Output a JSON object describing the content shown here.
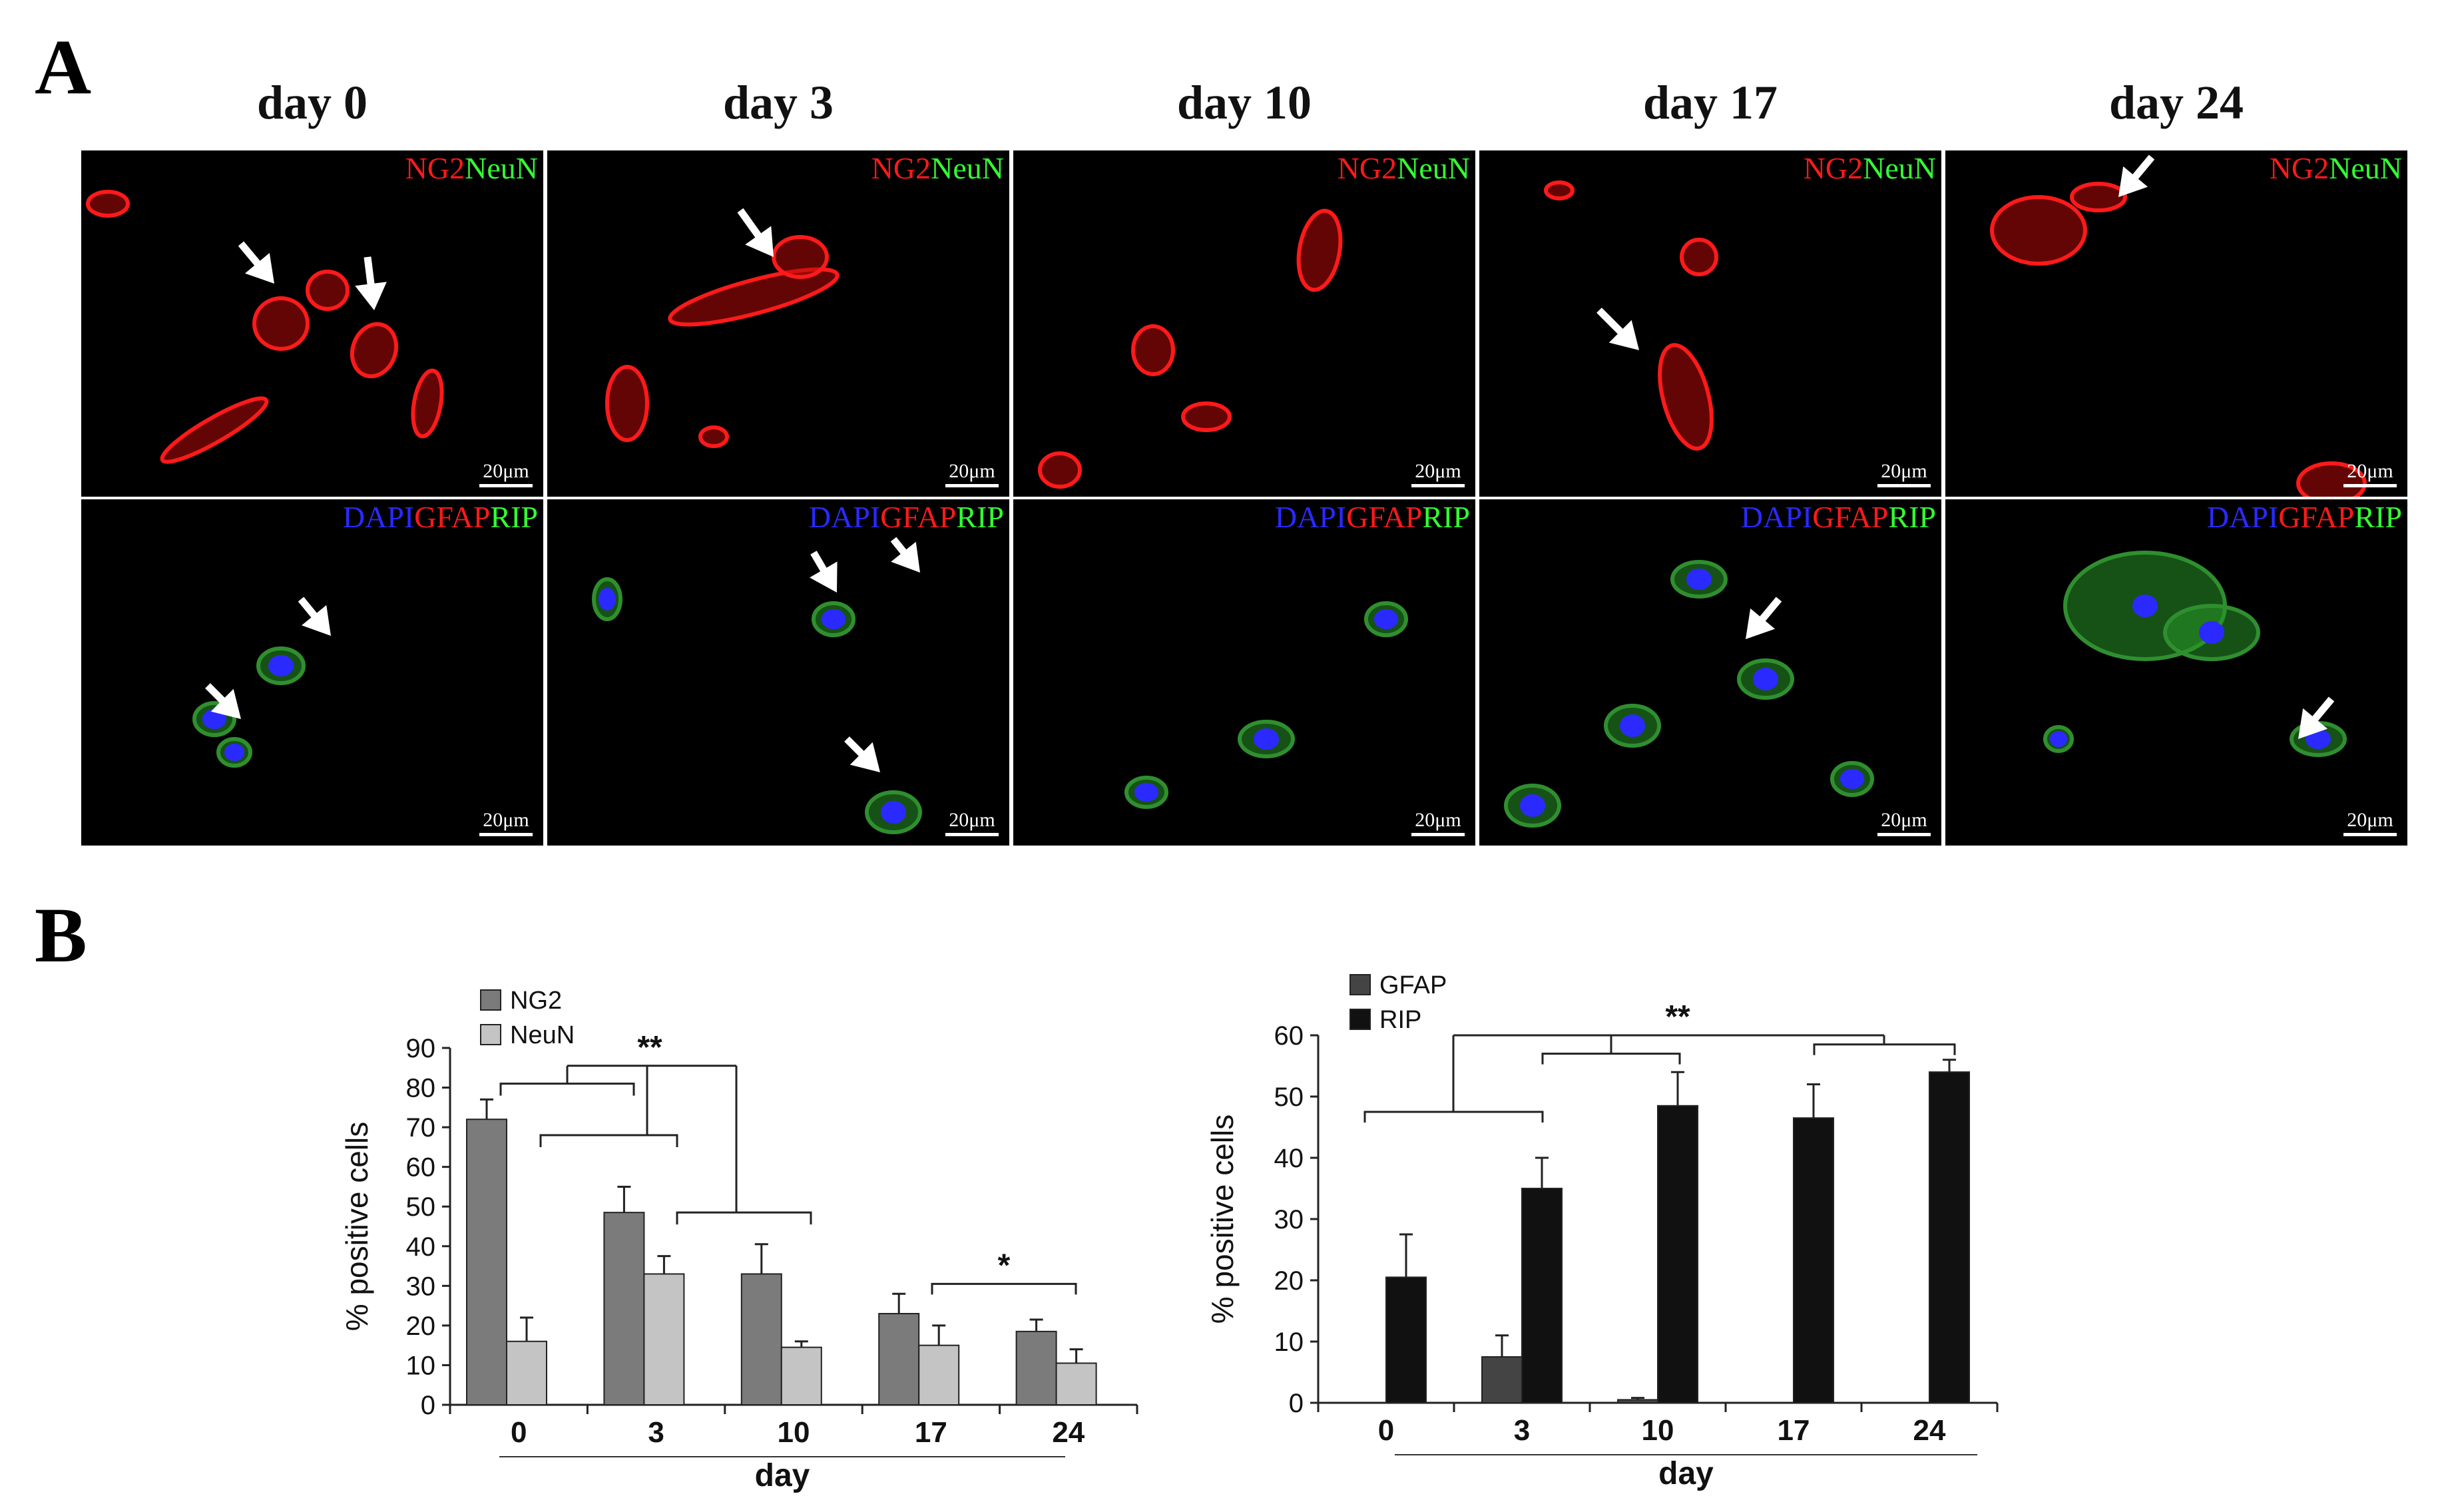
{
  "panel_a": {
    "letter": "A",
    "days": [
      "day 0",
      "day 3",
      "day 10",
      "day 17",
      "day 24"
    ],
    "row1_stain": {
      "a": "NG2",
      "b": "NeuN"
    },
    "row2_stain": {
      "a": "DAPI",
      "b": "GFAP",
      "c": "RIP"
    },
    "scale": "20μm",
    "colors": {
      "red": "#ff1a1a",
      "green": "#33ff33",
      "blue": "#2a2aff"
    }
  },
  "panel_b": {
    "letter": "B"
  },
  "chart_data": [
    {
      "type": "bar",
      "categories": [
        "0",
        "3",
        "10",
        "17",
        "24"
      ],
      "xlabel": "day",
      "ylabel": "% positive cells",
      "ylim": [
        0,
        90
      ],
      "yticks": [
        "0",
        "10",
        "20",
        "30",
        "40",
        "50",
        "60",
        "70",
        "80",
        "90"
      ],
      "series": [
        {
          "name": "NG2",
          "color": "#7b7b7b",
          "values": [
            72,
            48.5,
            33,
            23,
            18.5
          ],
          "errors": [
            5,
            6.5,
            7.5,
            5,
            3
          ]
        },
        {
          "name": "NeuN",
          "color": "#c4c4c4",
          "values": [
            16,
            33,
            14.5,
            15,
            10.5
          ],
          "errors": [
            6,
            4.5,
            1.5,
            5,
            3.5
          ]
        }
      ],
      "significance": [
        "**",
        "*"
      ],
      "legend": "top-left"
    },
    {
      "type": "bar",
      "categories": [
        "0",
        "3",
        "10",
        "17",
        "24"
      ],
      "xlabel": "day",
      "ylabel": "% positive cells",
      "ylim": [
        0,
        60
      ],
      "yticks": [
        "0",
        "10",
        "20",
        "30",
        "40",
        "50",
        "60"
      ],
      "series": [
        {
          "name": "GFAP",
          "color": "#444444",
          "values": [
            0,
            7.5,
            0.5,
            0,
            0
          ],
          "errors": [
            0,
            3.5,
            0.3,
            0,
            0
          ]
        },
        {
          "name": "RIP",
          "color": "#111111",
          "values": [
            20.5,
            35,
            48.5,
            46.5,
            54
          ],
          "errors": [
            7,
            5,
            5.5,
            5.5,
            2
          ]
        }
      ],
      "significance": [
        "**"
      ],
      "legend": "top-left"
    }
  ]
}
